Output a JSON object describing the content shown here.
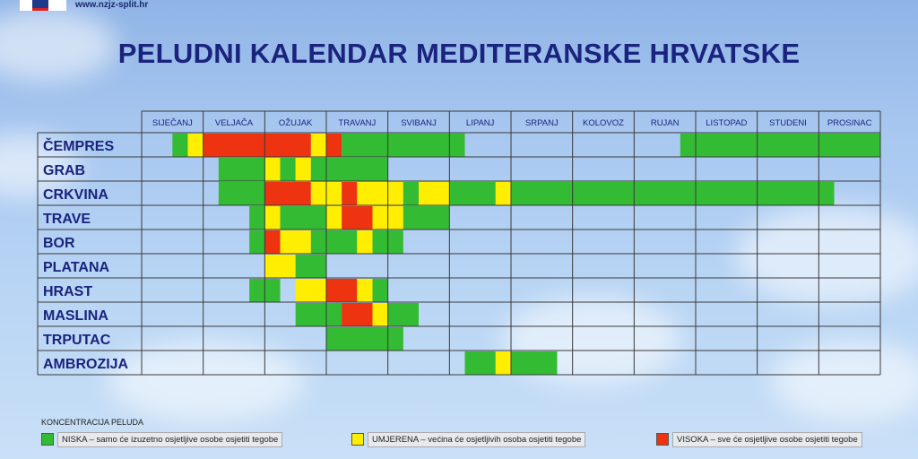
{
  "header": {
    "site": "www.nzjz-split.hr",
    "title": "PELUDNI KALENDAR MEDITERANSKE HRVATSKE"
  },
  "colors": {
    "niska": "#33bb33",
    "umjerena": "#ffee00",
    "visoka": "#ee3311",
    "grid": "#3a3a3a"
  },
  "chart_data": {
    "type": "table",
    "title": "PELUDNI KALENDAR MEDITERANSKE HRVATSKE",
    "months": [
      "SIJEČANJ",
      "VELJAČA",
      "OŽUJAK",
      "TRAVANJ",
      "SVIBANJ",
      "LIPANJ",
      "SRPANJ",
      "KOLOVOZ",
      "RUJAN",
      "LISTOPAD",
      "STUDENI",
      "PROSINAC"
    ],
    "segments_per_month": 4,
    "level_codes": {
      "n": "NISKA",
      "u": "UMJERENA",
      "v": "VISOKA"
    },
    "rows": [
      {
        "plant": "ČEMPRES",
        "periods": [
          {
            "from": 2,
            "to": 2,
            "level": "n"
          },
          {
            "from": 3,
            "to": 3,
            "level": "u"
          },
          {
            "from": 4,
            "to": 10,
            "level": "v"
          },
          {
            "from": 11,
            "to": 11,
            "level": "u"
          },
          {
            "from": 12,
            "to": 12,
            "level": "v"
          },
          {
            "from": 13,
            "to": 20,
            "level": "n"
          },
          {
            "from": 35,
            "to": 47,
            "level": "n"
          }
        ]
      },
      {
        "plant": "GRAB",
        "periods": [
          {
            "from": 5,
            "to": 7,
            "level": "n"
          },
          {
            "from": 8,
            "to": 8,
            "level": "u"
          },
          {
            "from": 9,
            "to": 9,
            "level": "n"
          },
          {
            "from": 10,
            "to": 10,
            "level": "u"
          },
          {
            "from": 11,
            "to": 15,
            "level": "n"
          }
        ]
      },
      {
        "plant": "CRKVINA",
        "periods": [
          {
            "from": 5,
            "to": 7,
            "level": "n"
          },
          {
            "from": 8,
            "to": 8,
            "level": "v"
          },
          {
            "from": 9,
            "to": 10,
            "level": "v"
          },
          {
            "from": 11,
            "to": 12,
            "level": "u"
          },
          {
            "from": 13,
            "to": 13,
            "level": "v"
          },
          {
            "from": 14,
            "to": 14,
            "level": "u"
          },
          {
            "from": 15,
            "to": 16,
            "level": "u"
          },
          {
            "from": 17,
            "to": 17,
            "level": "n"
          },
          {
            "from": 18,
            "to": 19,
            "level": "u"
          },
          {
            "from": 20,
            "to": 22,
            "level": "n"
          },
          {
            "from": 23,
            "to": 23,
            "level": "u"
          },
          {
            "from": 24,
            "to": 44,
            "level": "n"
          }
        ]
      },
      {
        "plant": "TRAVE",
        "periods": [
          {
            "from": 7,
            "to": 7,
            "level": "n"
          },
          {
            "from": 8,
            "to": 8,
            "level": "u"
          },
          {
            "from": 9,
            "to": 11,
            "level": "n"
          },
          {
            "from": 12,
            "to": 12,
            "level": "u"
          },
          {
            "from": 13,
            "to": 14,
            "level": "v"
          },
          {
            "from": 15,
            "to": 16,
            "level": "u"
          },
          {
            "from": 17,
            "to": 19,
            "level": "n"
          }
        ]
      },
      {
        "plant": "BOR",
        "periods": [
          {
            "from": 7,
            "to": 7,
            "level": "n"
          },
          {
            "from": 8,
            "to": 8,
            "level": "v"
          },
          {
            "from": 9,
            "to": 10,
            "level": "u"
          },
          {
            "from": 11,
            "to": 13,
            "level": "n"
          },
          {
            "from": 14,
            "to": 14,
            "level": "u"
          },
          {
            "from": 15,
            "to": 16,
            "level": "n"
          }
        ]
      },
      {
        "plant": "PLATANA",
        "periods": [
          {
            "from": 8,
            "to": 9,
            "level": "u"
          },
          {
            "from": 10,
            "to": 11,
            "level": "n"
          }
        ]
      },
      {
        "plant": "HRAST",
        "periods": [
          {
            "from": 7,
            "to": 8,
            "level": "n"
          },
          {
            "from": 10,
            "to": 11,
            "level": "u"
          },
          {
            "from": 12,
            "to": 13,
            "level": "v"
          },
          {
            "from": 14,
            "to": 14,
            "level": "u"
          },
          {
            "from": 15,
            "to": 15,
            "level": "n"
          }
        ]
      },
      {
        "plant": "MASLINA",
        "periods": [
          {
            "from": 10,
            "to": 12,
            "level": "n"
          },
          {
            "from": 13,
            "to": 14,
            "level": "v"
          },
          {
            "from": 15,
            "to": 15,
            "level": "u"
          },
          {
            "from": 16,
            "to": 17,
            "level": "n"
          }
        ]
      },
      {
        "plant": "TRPUTAC",
        "periods": [
          {
            "from": 12,
            "to": 16,
            "level": "n"
          }
        ]
      },
      {
        "plant": "AMBROZIJA",
        "periods": [
          {
            "from": 21,
            "to": 22,
            "level": "n"
          },
          {
            "from": 23,
            "to": 23,
            "level": "u"
          },
          {
            "from": 24,
            "to": 26,
            "level": "n"
          }
        ]
      }
    ]
  },
  "legend": {
    "title": "KONCENTRACIJA PELUDA",
    "items": [
      {
        "level": "n",
        "text": "NISKA – samo će izuzetno osjetljive osobe osjetiti tegobe"
      },
      {
        "level": "u",
        "text": "UMJERENA – većina će osjetljivih osoba osjetiti tegobe"
      },
      {
        "level": "v",
        "text": "VISOKA – sve će osjetljive osobe osjetiti tegobe"
      }
    ]
  }
}
